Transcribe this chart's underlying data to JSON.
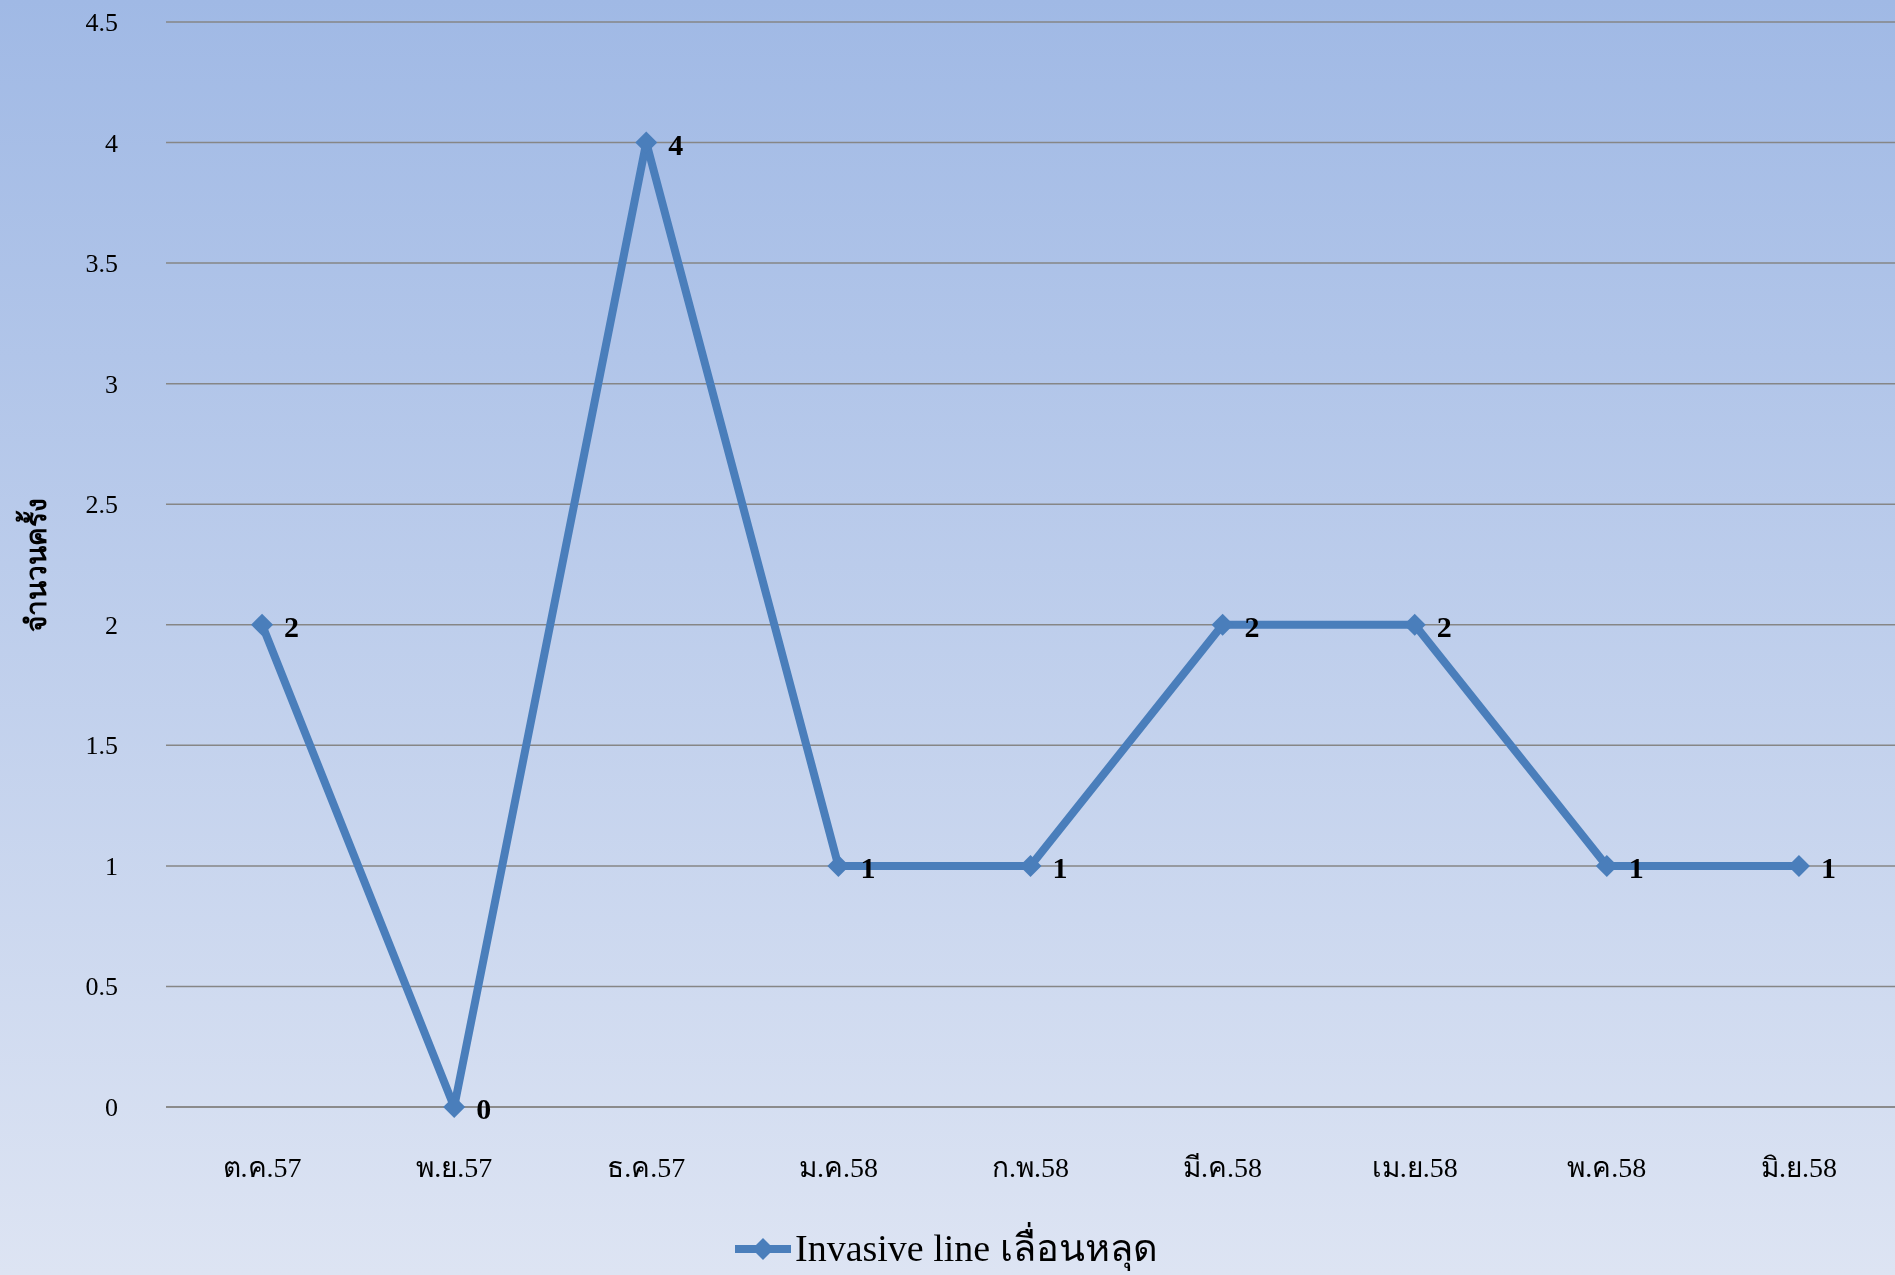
{
  "chart_data": {
    "type": "line",
    "ylabel": "จำนวนครั้ง",
    "categories": [
      "ต.ค.57",
      "พ.ย.57",
      "ธ.ค.57",
      "ม.ค.58",
      "ก.พ.58",
      "มี.ค.58",
      "เม.ย.58",
      "พ.ค.58",
      "มิ.ย.58"
    ],
    "series": [
      {
        "name": "Invasive line เลื่อนหลุด",
        "color": "#4a7ebb",
        "values": [
          2,
          0,
          4,
          1,
          1,
          2,
          2,
          1,
          1
        ]
      }
    ],
    "ylim": [
      0,
      4.5
    ],
    "yticks": [
      0,
      0.5,
      1,
      1.5,
      2,
      2.5,
      3,
      3.5,
      4,
      4.5
    ],
    "grid": "y",
    "legend": "bottom",
    "marker": "diamond",
    "line_style": "solid",
    "data_labels": true
  }
}
